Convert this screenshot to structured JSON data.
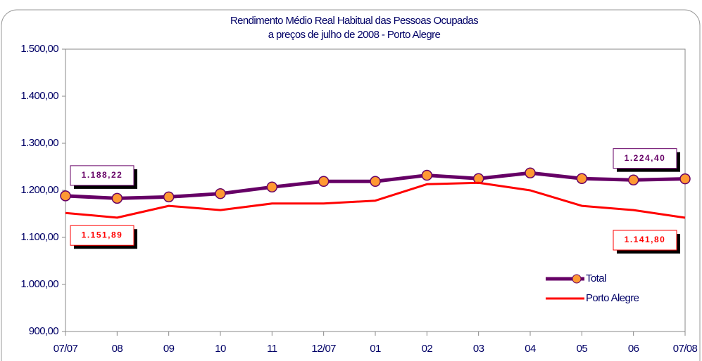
{
  "chart_data": {
    "type": "line",
    "title": [
      "Rendimento Médio Real Habitual das Pessoas Ocupadas",
      "a preços de julho de 2008 - Porto Alegre"
    ],
    "categories": [
      "07/07",
      "08",
      "09",
      "10",
      "11",
      "12/07",
      "01",
      "02",
      "03",
      "04",
      "05",
      "06",
      "07/08"
    ],
    "series": [
      {
        "name": "Total",
        "color": "#660066",
        "marker_color": "#ff9933",
        "values": [
          1188.22,
          1183,
          1186,
          1193,
          1207,
          1219,
          1219,
          1232,
          1225,
          1237,
          1225,
          1222,
          1224.4
        ],
        "value_labels": [
          "1.188,22",
          null,
          null,
          null,
          null,
          null,
          null,
          null,
          null,
          null,
          null,
          null,
          "1.224,40"
        ]
      },
      {
        "name": "Porto Alegre",
        "color": "#ff0000",
        "values": [
          1151.89,
          1142,
          1167,
          1158,
          1172,
          1172,
          1178,
          1213,
          1216,
          1200,
          1167,
          1158,
          1141.8
        ],
        "value_labels": [
          "1.151,89",
          null,
          null,
          null,
          null,
          null,
          null,
          null,
          null,
          null,
          null,
          null,
          "1.141,80"
        ]
      }
    ],
    "ylim": [
      900,
      1500
    ],
    "yticks": [
      {
        "value": 900,
        "label": "900,00"
      },
      {
        "value": 1000,
        "label": "1.000,00"
      },
      {
        "value": 1100,
        "label": "1.100,00"
      },
      {
        "value": 1200,
        "label": "1.200,00"
      },
      {
        "value": 1300,
        "label": "1.300,00"
      },
      {
        "value": 1400,
        "label": "1.400,00"
      },
      {
        "value": 1500,
        "label": "1.500,00"
      }
    ],
    "legend": "lower right"
  }
}
